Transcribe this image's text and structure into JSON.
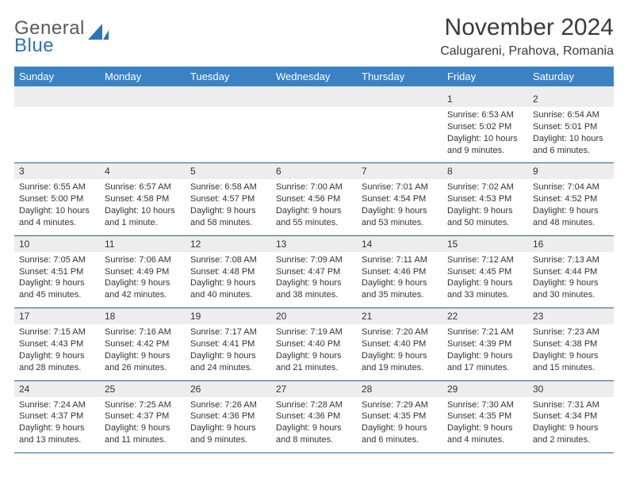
{
  "logo": {
    "general": "General",
    "blue": "Blue"
  },
  "header": {
    "title": "November 2024",
    "subtitle": "Calugareni, Prahova, Romania"
  },
  "colors": {
    "header_bg": "#3b82c4",
    "header_fg": "#ffffff",
    "daynum_bg": "#ededed",
    "row_border": "#2f5f8a",
    "logo_blue": "#2d74b8"
  },
  "day_labels": [
    "Sunday",
    "Monday",
    "Tuesday",
    "Wednesday",
    "Thursday",
    "Friday",
    "Saturday"
  ],
  "weeks": [
    [
      null,
      null,
      null,
      null,
      null,
      {
        "n": "1",
        "sr": "Sunrise: 6:53 AM",
        "ss": "Sunset: 5:02 PM",
        "dl1": "Daylight: 10 hours",
        "dl2": "and 9 minutes."
      },
      {
        "n": "2",
        "sr": "Sunrise: 6:54 AM",
        "ss": "Sunset: 5:01 PM",
        "dl1": "Daylight: 10 hours",
        "dl2": "and 6 minutes."
      }
    ],
    [
      {
        "n": "3",
        "sr": "Sunrise: 6:55 AM",
        "ss": "Sunset: 5:00 PM",
        "dl1": "Daylight: 10 hours",
        "dl2": "and 4 minutes."
      },
      {
        "n": "4",
        "sr": "Sunrise: 6:57 AM",
        "ss": "Sunset: 4:58 PM",
        "dl1": "Daylight: 10 hours",
        "dl2": "and 1 minute."
      },
      {
        "n": "5",
        "sr": "Sunrise: 6:58 AM",
        "ss": "Sunset: 4:57 PM",
        "dl1": "Daylight: 9 hours",
        "dl2": "and 58 minutes."
      },
      {
        "n": "6",
        "sr": "Sunrise: 7:00 AM",
        "ss": "Sunset: 4:56 PM",
        "dl1": "Daylight: 9 hours",
        "dl2": "and 55 minutes."
      },
      {
        "n": "7",
        "sr": "Sunrise: 7:01 AM",
        "ss": "Sunset: 4:54 PM",
        "dl1": "Daylight: 9 hours",
        "dl2": "and 53 minutes."
      },
      {
        "n": "8",
        "sr": "Sunrise: 7:02 AM",
        "ss": "Sunset: 4:53 PM",
        "dl1": "Daylight: 9 hours",
        "dl2": "and 50 minutes."
      },
      {
        "n": "9",
        "sr": "Sunrise: 7:04 AM",
        "ss": "Sunset: 4:52 PM",
        "dl1": "Daylight: 9 hours",
        "dl2": "and 48 minutes."
      }
    ],
    [
      {
        "n": "10",
        "sr": "Sunrise: 7:05 AM",
        "ss": "Sunset: 4:51 PM",
        "dl1": "Daylight: 9 hours",
        "dl2": "and 45 minutes."
      },
      {
        "n": "11",
        "sr": "Sunrise: 7:06 AM",
        "ss": "Sunset: 4:49 PM",
        "dl1": "Daylight: 9 hours",
        "dl2": "and 42 minutes."
      },
      {
        "n": "12",
        "sr": "Sunrise: 7:08 AM",
        "ss": "Sunset: 4:48 PM",
        "dl1": "Daylight: 9 hours",
        "dl2": "and 40 minutes."
      },
      {
        "n": "13",
        "sr": "Sunrise: 7:09 AM",
        "ss": "Sunset: 4:47 PM",
        "dl1": "Daylight: 9 hours",
        "dl2": "and 38 minutes."
      },
      {
        "n": "14",
        "sr": "Sunrise: 7:11 AM",
        "ss": "Sunset: 4:46 PM",
        "dl1": "Daylight: 9 hours",
        "dl2": "and 35 minutes."
      },
      {
        "n": "15",
        "sr": "Sunrise: 7:12 AM",
        "ss": "Sunset: 4:45 PM",
        "dl1": "Daylight: 9 hours",
        "dl2": "and 33 minutes."
      },
      {
        "n": "16",
        "sr": "Sunrise: 7:13 AM",
        "ss": "Sunset: 4:44 PM",
        "dl1": "Daylight: 9 hours",
        "dl2": "and 30 minutes."
      }
    ],
    [
      {
        "n": "17",
        "sr": "Sunrise: 7:15 AM",
        "ss": "Sunset: 4:43 PM",
        "dl1": "Daylight: 9 hours",
        "dl2": "and 28 minutes."
      },
      {
        "n": "18",
        "sr": "Sunrise: 7:16 AM",
        "ss": "Sunset: 4:42 PM",
        "dl1": "Daylight: 9 hours",
        "dl2": "and 26 minutes."
      },
      {
        "n": "19",
        "sr": "Sunrise: 7:17 AM",
        "ss": "Sunset: 4:41 PM",
        "dl1": "Daylight: 9 hours",
        "dl2": "and 24 minutes."
      },
      {
        "n": "20",
        "sr": "Sunrise: 7:19 AM",
        "ss": "Sunset: 4:40 PM",
        "dl1": "Daylight: 9 hours",
        "dl2": "and 21 minutes."
      },
      {
        "n": "21",
        "sr": "Sunrise: 7:20 AM",
        "ss": "Sunset: 4:40 PM",
        "dl1": "Daylight: 9 hours",
        "dl2": "and 19 minutes."
      },
      {
        "n": "22",
        "sr": "Sunrise: 7:21 AM",
        "ss": "Sunset: 4:39 PM",
        "dl1": "Daylight: 9 hours",
        "dl2": "and 17 minutes."
      },
      {
        "n": "23",
        "sr": "Sunrise: 7:23 AM",
        "ss": "Sunset: 4:38 PM",
        "dl1": "Daylight: 9 hours",
        "dl2": "and 15 minutes."
      }
    ],
    [
      {
        "n": "24",
        "sr": "Sunrise: 7:24 AM",
        "ss": "Sunset: 4:37 PM",
        "dl1": "Daylight: 9 hours",
        "dl2": "and 13 minutes."
      },
      {
        "n": "25",
        "sr": "Sunrise: 7:25 AM",
        "ss": "Sunset: 4:37 PM",
        "dl1": "Daylight: 9 hours",
        "dl2": "and 11 minutes."
      },
      {
        "n": "26",
        "sr": "Sunrise: 7:26 AM",
        "ss": "Sunset: 4:36 PM",
        "dl1": "Daylight: 9 hours",
        "dl2": "and 9 minutes."
      },
      {
        "n": "27",
        "sr": "Sunrise: 7:28 AM",
        "ss": "Sunset: 4:36 PM",
        "dl1": "Daylight: 9 hours",
        "dl2": "and 8 minutes."
      },
      {
        "n": "28",
        "sr": "Sunrise: 7:29 AM",
        "ss": "Sunset: 4:35 PM",
        "dl1": "Daylight: 9 hours",
        "dl2": "and 6 minutes."
      },
      {
        "n": "29",
        "sr": "Sunrise: 7:30 AM",
        "ss": "Sunset: 4:35 PM",
        "dl1": "Daylight: 9 hours",
        "dl2": "and 4 minutes."
      },
      {
        "n": "30",
        "sr": "Sunrise: 7:31 AM",
        "ss": "Sunset: 4:34 PM",
        "dl1": "Daylight: 9 hours",
        "dl2": "and 2 minutes."
      }
    ]
  ]
}
